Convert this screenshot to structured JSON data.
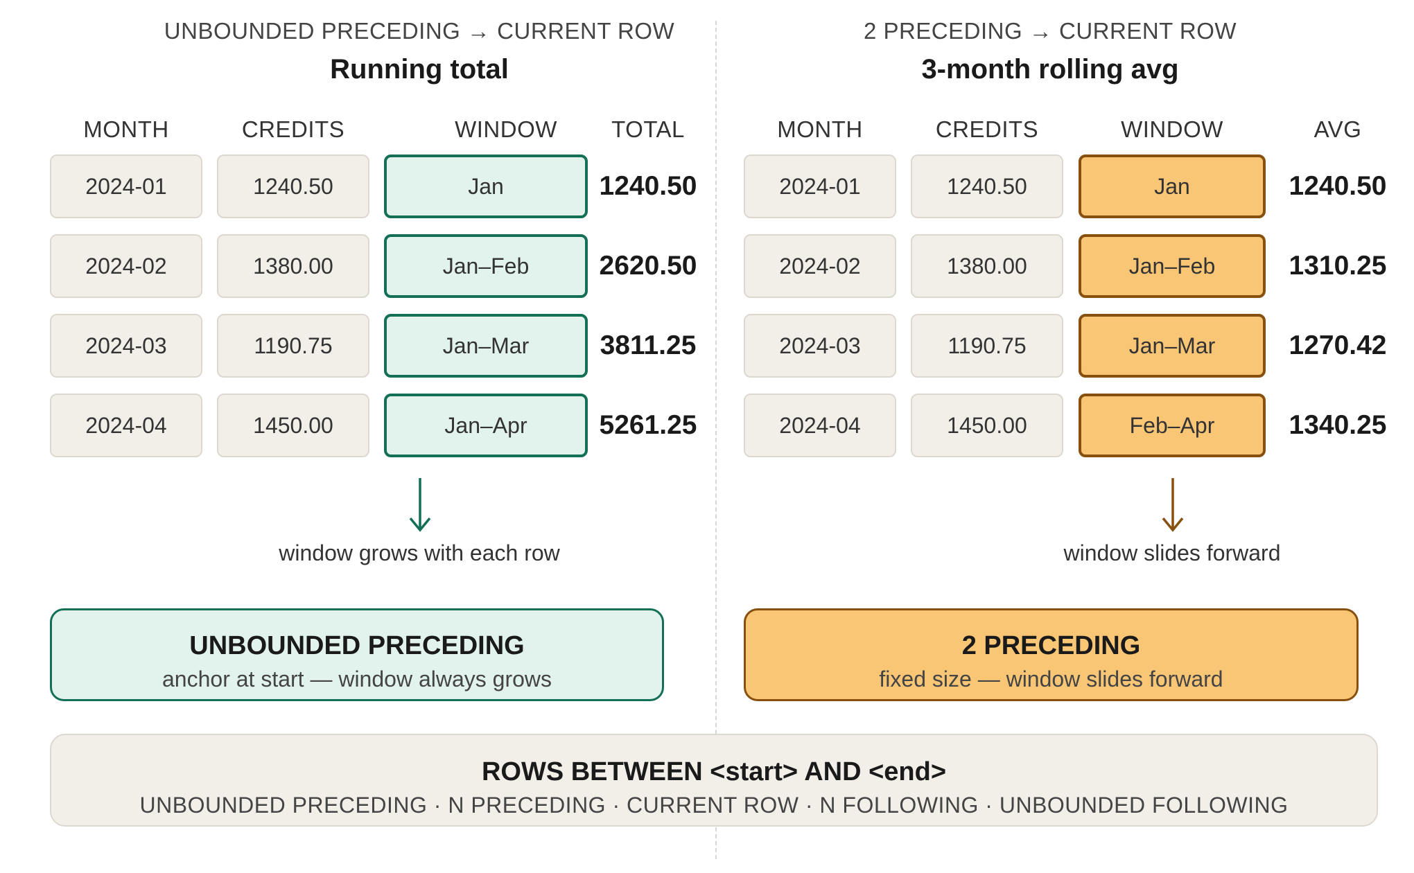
{
  "left": {
    "frame": "UNBOUNDED PRECEDING → CURRENT ROW",
    "title": "Running total",
    "headers": [
      "MONTH",
      "CREDITS",
      "WINDOW",
      "TOTAL"
    ],
    "rows": [
      {
        "month": "2024-01",
        "credits": "1240.50",
        "window": "Jan",
        "result": "1240.50"
      },
      {
        "month": "2024-02",
        "credits": "1380.00",
        "window": "Jan–Feb",
        "result": "2620.50"
      },
      {
        "month": "2024-03",
        "credits": "1190.75",
        "window": "Jan–Mar",
        "result": "3811.25"
      },
      {
        "month": "2024-04",
        "credits": "1450.00",
        "window": "Jan–Apr",
        "result": "5261.25"
      }
    ],
    "note": "window grows with each row",
    "box_title": "UNBOUNDED PRECEDING",
    "box_sub": "anchor at start — window always grows",
    "accent": "#137056",
    "fill": "#e1f3ec"
  },
  "right": {
    "frame": "2 PRECEDING → CURRENT ROW",
    "title": "3-month rolling avg",
    "headers": [
      "MONTH",
      "CREDITS",
      "WINDOW",
      "AVG"
    ],
    "rows": [
      {
        "month": "2024-01",
        "credits": "1240.50",
        "window": "Jan",
        "result": "1240.50"
      },
      {
        "month": "2024-02",
        "credits": "1380.00",
        "window": "Jan–Feb",
        "result": "1310.25"
      },
      {
        "month": "2024-03",
        "credits": "1190.75",
        "window": "Jan–Mar",
        "result": "1270.42"
      },
      {
        "month": "2024-04",
        "credits": "1450.00",
        "window": "Feb–Apr",
        "result": "1340.25"
      }
    ],
    "note": "window slides forward",
    "box_title": "2 PRECEDING",
    "box_sub": "fixed size — window slides forward",
    "accent": "#87500f",
    "fill": "#f9c676"
  },
  "footer": {
    "title": "ROWS BETWEEN <start> AND <end>",
    "sub": "UNBOUNDED PRECEDING · N PRECEDING · CURRENT ROW · N FOLLOWING · UNBOUNDED FOLLOWING"
  }
}
